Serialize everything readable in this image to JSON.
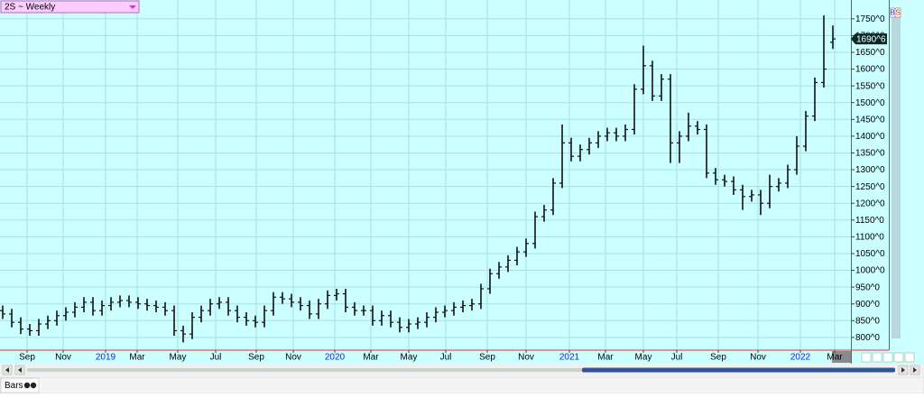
{
  "chart_data": {
    "type": "ohlc",
    "title": "2S ~ Weekly",
    "footer_label": "Bars",
    "side_buttons": [
      "B",
      "S"
    ],
    "color": "#111111",
    "grid": true,
    "grid_color": "#a9dfe6",
    "background": "#ccffff",
    "last_price": {
      "value": 1690,
      "label": "1690^6"
    },
    "xlim": [
      -0.3,
      94
    ],
    "xticks": [
      {
        "value": 2.7,
        "label": "Sep"
      },
      {
        "value": 6.7,
        "label": "Nov"
      },
      {
        "value": 11.4,
        "label": "2019"
      },
      {
        "value": 14.9,
        "label": "Mar"
      },
      {
        "value": 19.4,
        "label": "May"
      },
      {
        "value": 23.6,
        "label": "Jul"
      },
      {
        "value": 28.1,
        "label": "Sep"
      },
      {
        "value": 32.2,
        "label": "Nov"
      },
      {
        "value": 36.8,
        "label": "2020"
      },
      {
        "value": 40.8,
        "label": "Mar"
      },
      {
        "value": 45,
        "label": "May"
      },
      {
        "value": 49.1,
        "label": "Jul"
      },
      {
        "value": 53.7,
        "label": "Sep"
      },
      {
        "value": 58,
        "label": "Nov"
      },
      {
        "value": 62.8,
        "label": "2021"
      },
      {
        "value": 66.8,
        "label": "Mar"
      },
      {
        "value": 71,
        "label": "May"
      },
      {
        "value": 74.7,
        "label": "Jul"
      },
      {
        "value": 79.3,
        "label": "Sep"
      },
      {
        "value": 83.7,
        "label": "Nov"
      },
      {
        "value": 88.4,
        "label": "2022"
      },
      {
        "value": 92.2,
        "label": "Mar"
      }
    ],
    "ylim": [
      762,
      1806
    ],
    "yticks": [
      {
        "value": 800,
        "label": "800^0"
      },
      {
        "value": 850,
        "label": "850^0"
      },
      {
        "value": 900,
        "label": "900^0"
      },
      {
        "value": 950,
        "label": "950^0"
      },
      {
        "value": 1000,
        "label": "1000^0"
      },
      {
        "value": 1050,
        "label": "1050^0"
      },
      {
        "value": 1100,
        "label": "1100^0"
      },
      {
        "value": 1150,
        "label": "1150^0"
      },
      {
        "value": 1200,
        "label": "1200^0"
      },
      {
        "value": 1250,
        "label": "1250^0"
      },
      {
        "value": 1300,
        "label": "1300^0"
      },
      {
        "value": 1350,
        "label": "1350^0"
      },
      {
        "value": 1400,
        "label": "1400^0"
      },
      {
        "value": 1450,
        "label": "1450^0"
      },
      {
        "value": 1500,
        "label": "1500^0"
      },
      {
        "value": 1550,
        "label": "1550^0"
      },
      {
        "value": 1600,
        "label": "1600^0"
      },
      {
        "value": 1650,
        "label": "1650^0"
      },
      {
        "value": 1700,
        "label": "1700^0"
      },
      {
        "value": 1750,
        "label": "1750^0"
      }
    ],
    "open": [
      880,
      870,
      845,
      825,
      820,
      840,
      850,
      865,
      875,
      890,
      905,
      880,
      895,
      905,
      910,
      905,
      900,
      895,
      890,
      880,
      820,
      810,
      860,
      880,
      900,
      905,
      880,
      860,
      850,
      845,
      880,
      920,
      915,
      905,
      895,
      870,
      900,
      925,
      930,
      890,
      880,
      880,
      850,
      865,
      845,
      830,
      840,
      845,
      860,
      875,
      880,
      890,
      895,
      900,
      945,
      990,
      1010,
      1030,
      1055,
      1080,
      1160,
      1180,
      1260,
      1380,
      1340,
      1360,
      1380,
      1400,
      1410,
      1400,
      1420,
      1540,
      1610,
      1520,
      1570,
      1380,
      1400,
      1430,
      1420,
      1290,
      1270,
      1265,
      1240,
      1220,
      1225,
      1200,
      1250,
      1260,
      1300,
      1370,
      1460,
      1560,
      1680
    ],
    "high": [
      895,
      885,
      860,
      840,
      855,
      865,
      880,
      890,
      905,
      920,
      920,
      910,
      920,
      925,
      925,
      920,
      915,
      910,
      905,
      895,
      835,
      875,
      895,
      915,
      920,
      920,
      895,
      875,
      865,
      895,
      935,
      935,
      930,
      920,
      910,
      915,
      940,
      945,
      945,
      905,
      895,
      895,
      880,
      880,
      860,
      855,
      860,
      875,
      890,
      895,
      905,
      910,
      915,
      960,
      1005,
      1025,
      1045,
      1070,
      1095,
      1175,
      1195,
      1275,
      1435,
      1395,
      1375,
      1395,
      1415,
      1425,
      1425,
      1435,
      1555,
      1670,
      1625,
      1585,
      1585,
      1415,
      1470,
      1445,
      1435,
      1305,
      1285,
      1280,
      1255,
      1240,
      1240,
      1285,
      1275,
      1315,
      1400,
      1475,
      1575,
      1760,
      1730
    ],
    "low": [
      855,
      830,
      810,
      805,
      805,
      825,
      835,
      850,
      860,
      875,
      865,
      865,
      880,
      890,
      890,
      885,
      880,
      875,
      865,
      805,
      785,
      795,
      845,
      865,
      885,
      865,
      845,
      835,
      830,
      830,
      865,
      900,
      890,
      880,
      855,
      855,
      885,
      910,
      875,
      865,
      865,
      835,
      835,
      830,
      815,
      815,
      825,
      830,
      845,
      860,
      865,
      875,
      880,
      885,
      930,
      975,
      995,
      1015,
      1040,
      1065,
      1145,
      1165,
      1245,
      1325,
      1325,
      1345,
      1365,
      1385,
      1385,
      1385,
      1405,
      1525,
      1505,
      1505,
      1320,
      1320,
      1385,
      1405,
      1275,
      1255,
      1250,
      1225,
      1180,
      1205,
      1165,
      1185,
      1235,
      1245,
      1285,
      1355,
      1445,
      1545,
      1660
    ],
    "close": [
      870,
      845,
      825,
      820,
      840,
      850,
      865,
      875,
      890,
      905,
      880,
      895,
      905,
      910,
      905,
      900,
      895,
      890,
      880,
      820,
      810,
      860,
      880,
      900,
      905,
      880,
      860,
      850,
      845,
      880,
      920,
      915,
      905,
      895,
      870,
      900,
      925,
      930,
      890,
      880,
      880,
      850,
      865,
      845,
      830,
      840,
      845,
      860,
      875,
      880,
      890,
      895,
      900,
      945,
      990,
      1010,
      1030,
      1055,
      1080,
      1160,
      1180,
      1260,
      1380,
      1340,
      1360,
      1380,
      1400,
      1410,
      1400,
      1420,
      1540,
      1610,
      1520,
      1570,
      1380,
      1400,
      1430,
      1420,
      1290,
      1270,
      1265,
      1240,
      1220,
      1225,
      1200,
      1250,
      1260,
      1300,
      1370,
      1460,
      1560,
      1600,
      1690
    ]
  }
}
